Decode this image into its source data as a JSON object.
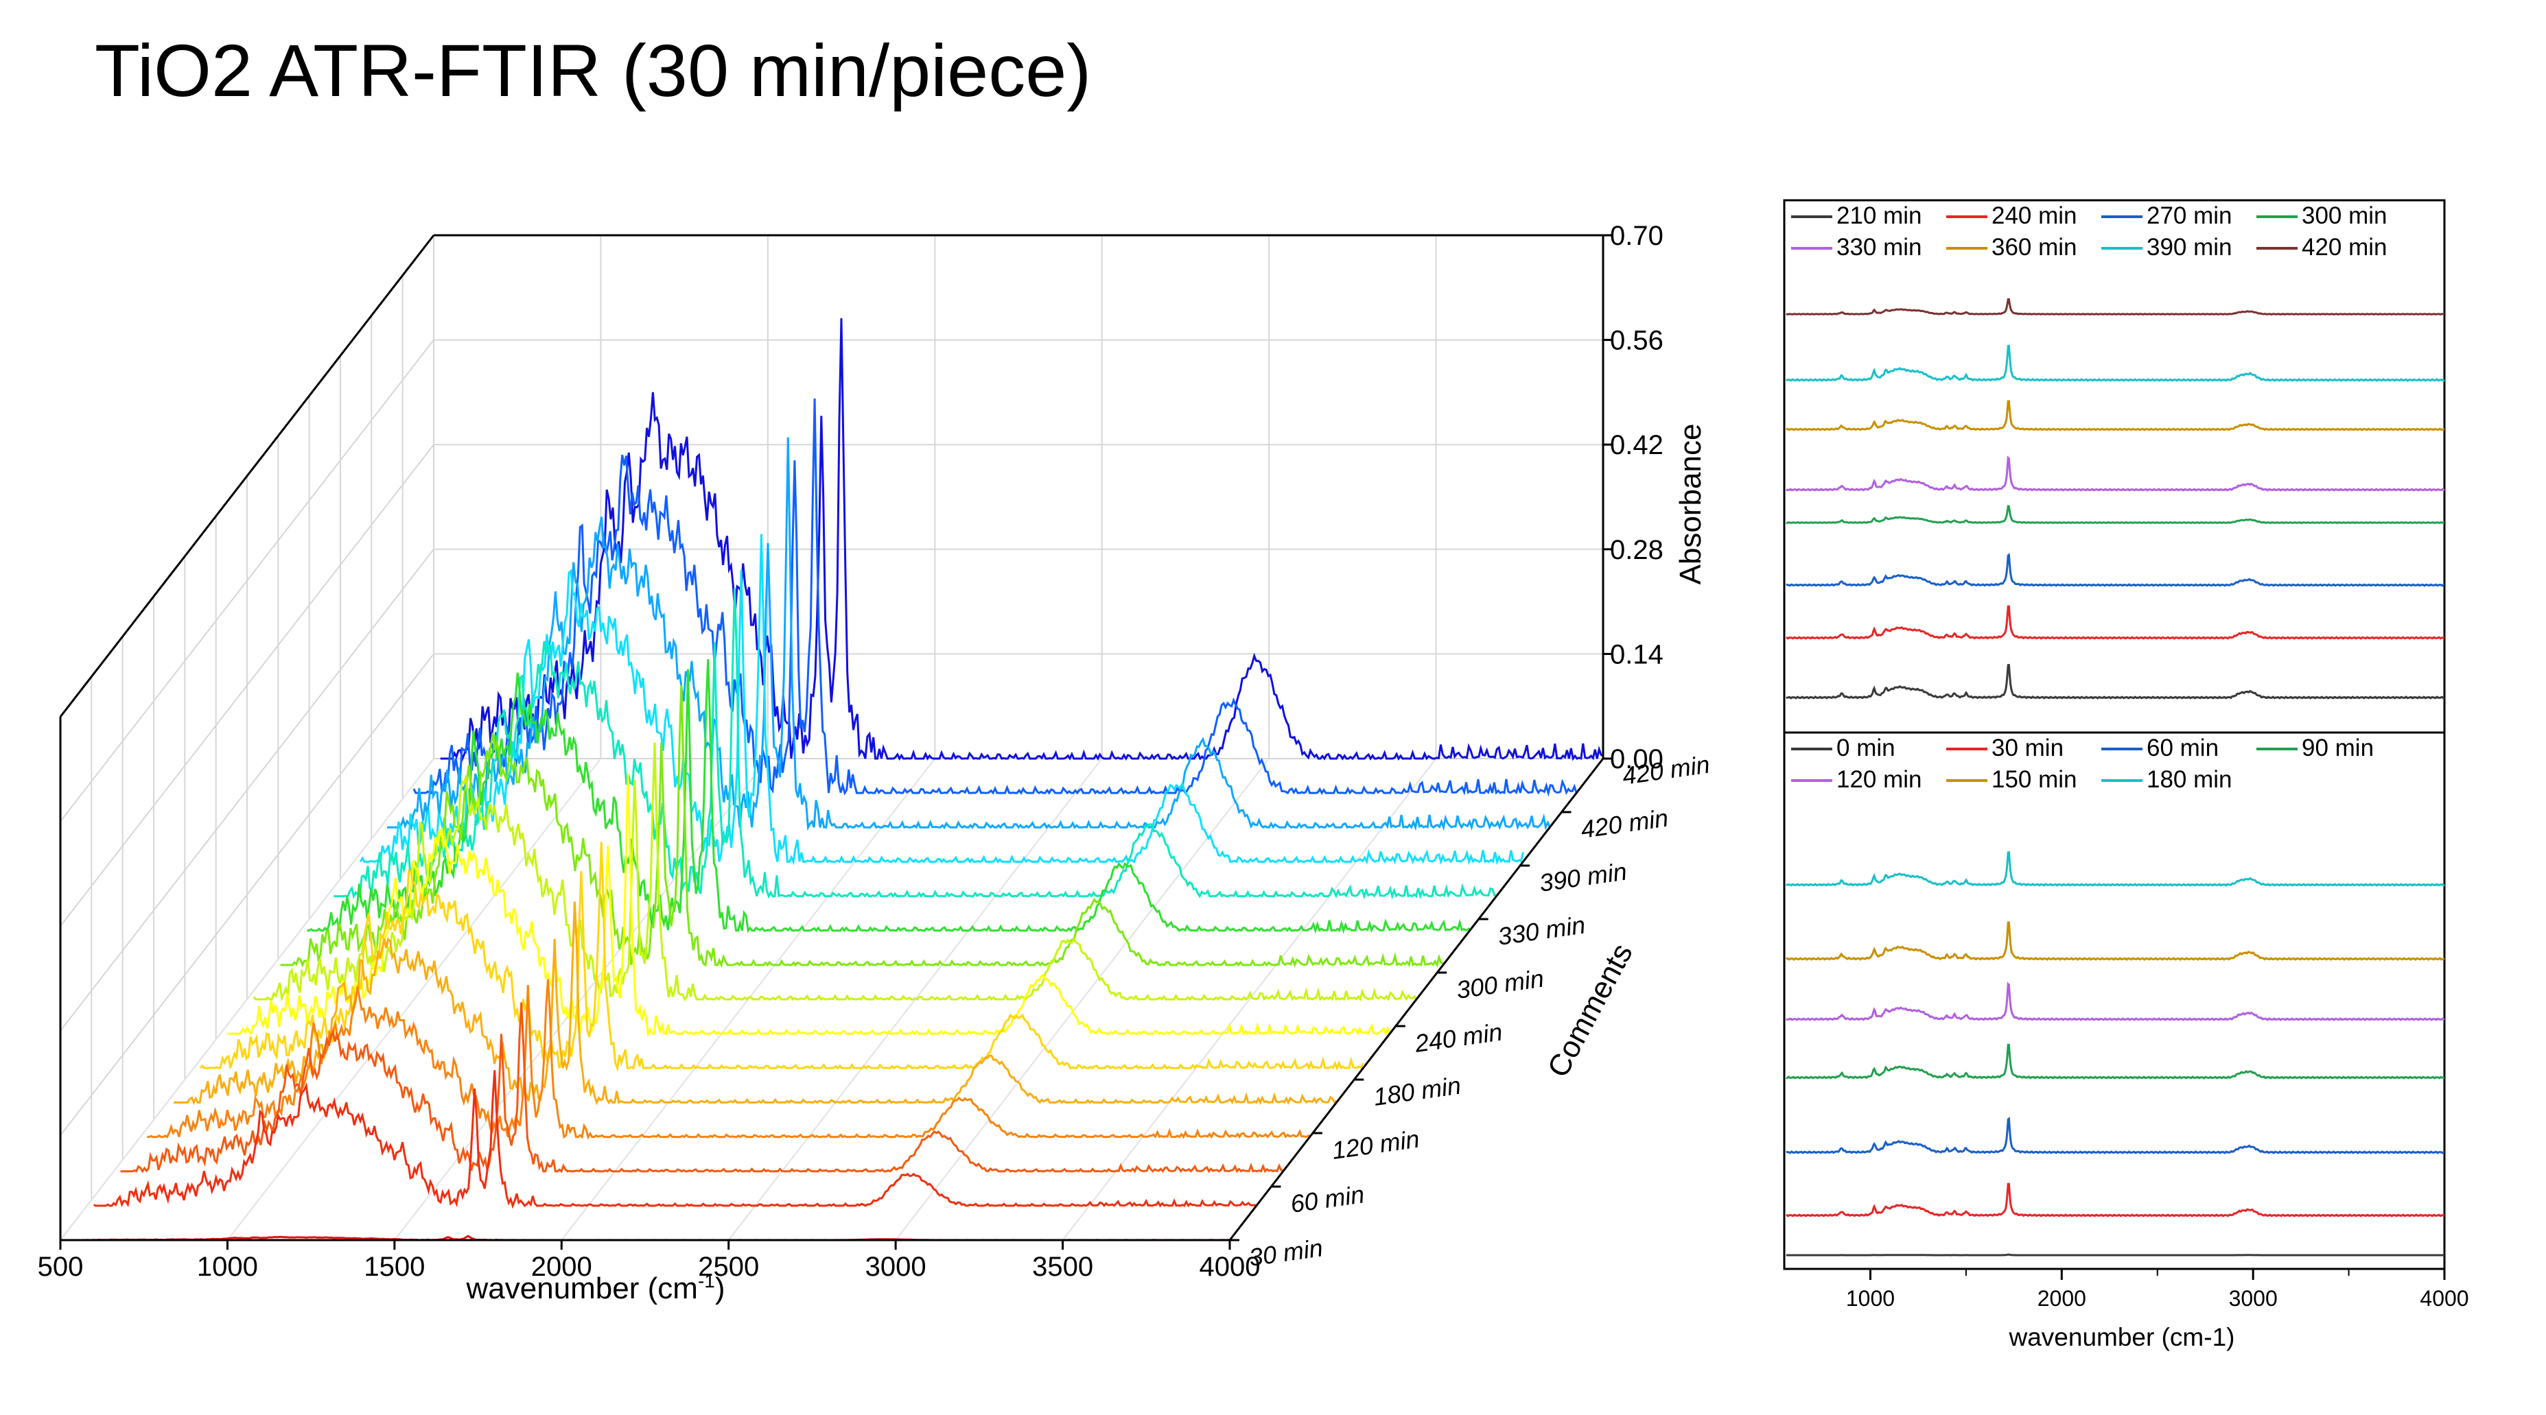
{
  "page": {
    "title": "TiO2 ATR-FTIR (30 min/piece)"
  },
  "chart_data": [
    {
      "type": "waterfall-3d-line",
      "title": "TiO2 ATR-FTIR (30 min/piece)",
      "xlabel": "wavenumber (cm-1)",
      "xlabel_parts": {
        "base": "wavenumber (cm",
        "sup": "-1",
        "end": ")"
      },
      "zlabel": "Absorbance",
      "ylabel": "Comments",
      "xlim": [
        500,
        4000
      ],
      "zlim": [
        0,
        0.7
      ],
      "x_ticks": [
        "500",
        "1000",
        "1500",
        "2000",
        "2500",
        "3000",
        "3500",
        "4000"
      ],
      "z_ticks": [
        "0.00",
        "0.14",
        "0.28",
        "0.42",
        "0.56",
        "0.70"
      ],
      "y_ticks": [
        "30 min",
        "60 min",
        "120 min",
        "180 min",
        "240 min",
        "300 min",
        "330 min",
        "390 min",
        "420 min",
        "420 min"
      ],
      "series_times_min": [
        0,
        30,
        60,
        90,
        120,
        150,
        180,
        210,
        240,
        270,
        300,
        330,
        360,
        390,
        420
      ],
      "series_colors": [
        "#e81010",
        "#ef2f10",
        "#f45a10",
        "#f78410",
        "#fbad10",
        "#ffd510",
        "#ffff10",
        "#c6f510",
        "#7fe810",
        "#30e030",
        "#10e8c0",
        "#10e0ff",
        "#10a8ff",
        "#1060ff",
        "#1010e0"
      ],
      "series_peak_heights": [
        0.005,
        0.18,
        0.22,
        0.22,
        0.26,
        0.3,
        0.32,
        0.34,
        0.36,
        0.38,
        0.4,
        0.44,
        0.48,
        0.52,
        0.56
      ]
    },
    {
      "type": "line",
      "panel": "top-right",
      "xlabel": "wavenumber (cm-1)",
      "xlim": [
        550,
        4000
      ],
      "legend": [
        {
          "label": "210 min",
          "color": "#3a3a3a"
        },
        {
          "label": "240 min",
          "color": "#e62626"
        },
        {
          "label": "270 min",
          "color": "#1a5fc8"
        },
        {
          "label": "300 min",
          "color": "#22a050"
        },
        {
          "label": "330 min",
          "color": "#b060e0"
        },
        {
          "label": "360 min",
          "color": "#c89000"
        },
        {
          "label": "390 min",
          "color": "#18c0c8"
        },
        {
          "label": "420 min",
          "color": "#7a3232"
        }
      ],
      "series_amplitude": [
        1.0,
        0.95,
        0.9,
        0.5,
        0.95,
        0.85,
        1.05,
        0.45
      ]
    },
    {
      "type": "line",
      "panel": "bottom-right",
      "xlabel": "wavenumber (cm-1)",
      "xlim": [
        550,
        4000
      ],
      "x_ticks": [
        "1000",
        "2000",
        "3000",
        "4000"
      ],
      "legend": [
        {
          "label": "0 min",
          "color": "#3a3a3a"
        },
        {
          "label": "30 min",
          "color": "#e62626"
        },
        {
          "label": "60 min",
          "color": "#1a5fc8"
        },
        {
          "label": "90 min",
          "color": "#22a050"
        },
        {
          "label": "120 min",
          "color": "#b060e0"
        },
        {
          "label": "150 min",
          "color": "#c89000"
        },
        {
          "label": "180 min",
          "color": "#18c0c8"
        }
      ],
      "series_amplitude": [
        0.02,
        0.95,
        1.0,
        1.0,
        1.05,
        1.1,
        1.0
      ]
    }
  ]
}
